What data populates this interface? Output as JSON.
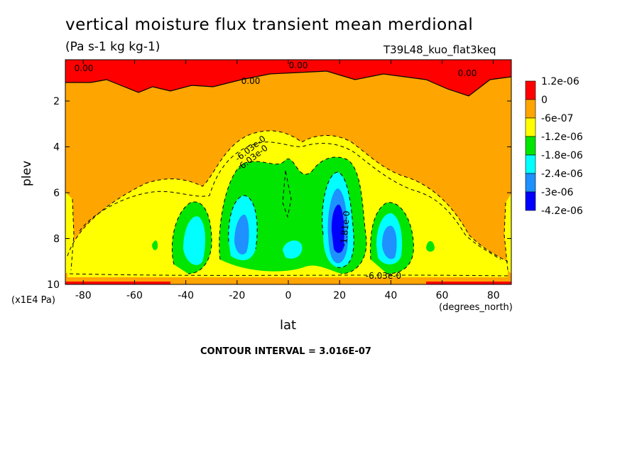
{
  "chart_data": {
    "type": "contour",
    "title": "vertical moisture flux transient mean merdional",
    "units": "(Pa s-1 kg kg-1)",
    "run_id": "T39L48_kuo_flat3keq",
    "xlabel": "lat",
    "x_units": "(degrees_north)",
    "ylabel": "plev",
    "y_units": "(x1E4 Pa)",
    "xlim": [
      -87,
      87
    ],
    "ylim": [
      10,
      0.2
    ],
    "x_ticks": [
      -80,
      -60,
      -40,
      -20,
      0,
      20,
      40,
      60,
      80
    ],
    "y_ticks": [
      2,
      4,
      6,
      8,
      10
    ],
    "contour_interval_text": "CONTOUR INTERVAL = 3.016E-07",
    "contour_labels": [
      "0.00",
      "0.00",
      "0.00",
      "0.00",
      "-6.03e-0",
      "-6.03e-0",
      "-1.81e-0",
      "-6.03e-0"
    ],
    "legend": {
      "labels": [
        "1.2e-06",
        "0",
        "-6e-07",
        "-1.2e-06",
        "-1.8e-06",
        "-2.4e-06",
        "-3e-06",
        "-4.2e-06"
      ],
      "colors": [
        "#ff0000",
        "#ffa500",
        "#ffff00",
        "#00e600",
        "#00ffff",
        "#1e90ff",
        "#0000ff"
      ]
    },
    "colors": {
      "background": "#ffa500",
      "positive": "#ff0000",
      "band1": "#ffff00",
      "band2": "#00e600",
      "band3": "#00ffff",
      "band4": "#1e90ff",
      "band5": "#0000ff"
    }
  }
}
